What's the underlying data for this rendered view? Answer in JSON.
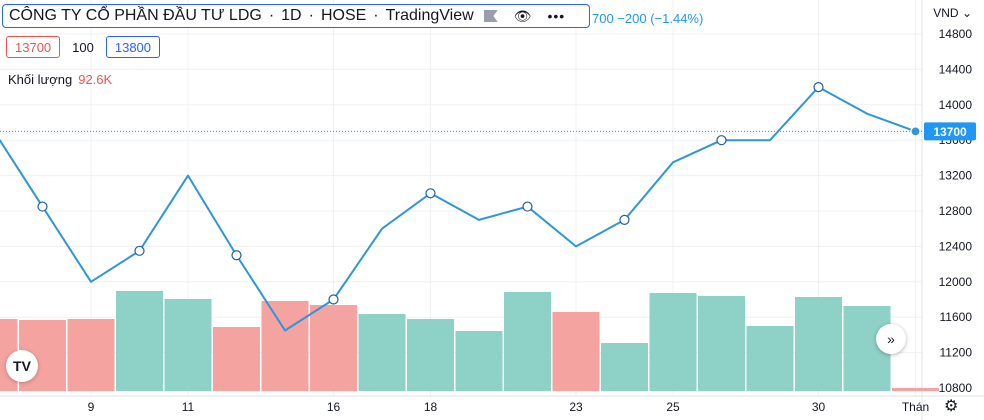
{
  "legend": {
    "symbol_name": "CÔNG TY CỔ PHẦN ĐẦU TƯ LDG",
    "interval": "1D",
    "exchange": "HOSE",
    "source": "TradingView",
    "icons": [
      "flag-icon",
      "eye-icon",
      "more-icon"
    ]
  },
  "price_change_text": "700 −200 (−1.44%)",
  "ohlc": {
    "sell": "13700",
    "spread": "100",
    "buy": "13800"
  },
  "volume": {
    "label": "Khối lượng",
    "value": "92.6K"
  },
  "currency": "VND",
  "currency_caret": "⌄",
  "current_price_label": "13700",
  "colors": {
    "line": "#2f96d8",
    "volume_up": "#8ed1c6",
    "volume_down": "#f5a3a0",
    "price_tag": "#2196f3",
    "grid": "#eef0f3"
  },
  "chart_data": {
    "type": "line",
    "title": "CÔNG TY CỔ PHẦN ĐẦU TƯ LDG",
    "xlabel": "",
    "ylabel": "",
    "ylim": [
      10800,
      14800
    ],
    "y_ticks": [
      10800,
      11200,
      11600,
      12000,
      12400,
      12800,
      13200,
      13600,
      14000,
      14400,
      14800
    ],
    "x_tick_labels": [
      "9",
      "11",
      "16",
      "18",
      "23",
      "25",
      "30",
      "Thán"
    ],
    "x_tick_positions": [
      1.5,
      3.5,
      6.5,
      8.5,
      11.5,
      13.5,
      16.5,
      18.5
    ],
    "price_series": {
      "x": [
        -0.5,
        0.5,
        1.5,
        2.5,
        3.5,
        4.5,
        5.5,
        6.5,
        7.5,
        8.5,
        9.5,
        10.5,
        11.5,
        12.5,
        13.5,
        14.5,
        15.5,
        16.5,
        17.5,
        18.5
      ],
      "values": [
        13700,
        12850,
        12000,
        12350,
        13200,
        12300,
        11450,
        11800,
        12600,
        13000,
        12700,
        12850,
        12400,
        12700,
        13350,
        13600,
        13600,
        14200,
        13900,
        13700
      ],
      "markers": [
        1,
        3,
        5,
        7,
        9,
        11,
        13,
        15,
        17,
        19
      ]
    },
    "volume_series": {
      "x": [
        -0.5,
        0.5,
        1.5,
        2.5,
        3.5,
        4.5,
        5.5,
        6.5,
        7.5,
        8.5,
        9.5,
        10.5,
        11.5,
        12.5,
        13.5,
        14.5,
        15.5,
        16.5,
        17.5,
        18.5
      ],
      "values": [
        72,
        71,
        72,
        100,
        92,
        64,
        90,
        86,
        77,
        72,
        60,
        99,
        79,
        48,
        98,
        95,
        65,
        94,
        85,
        3
      ],
      "direction": [
        "down",
        "down",
        "down",
        "up",
        "up",
        "down",
        "down",
        "down",
        "up",
        "up",
        "up",
        "up",
        "down",
        "up",
        "up",
        "up",
        "up",
        "up",
        "up",
        "down"
      ]
    }
  }
}
